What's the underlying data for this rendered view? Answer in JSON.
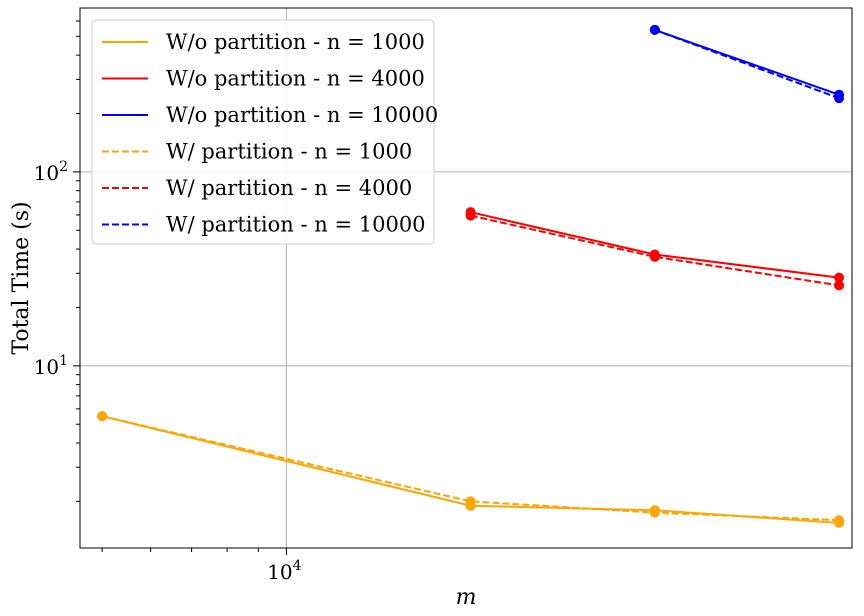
{
  "chart_data": {
    "type": "line",
    "title": "",
    "xlabel": "m",
    "ylabel": "Total Time (s)",
    "xscale": "log",
    "yscale": "log",
    "xlim": [
      4600,
      84000
    ],
    "ylim": [
      1.15,
      700
    ],
    "grid": true,
    "legend_position": "top-left",
    "x_ticks": [
      {
        "value": 10000,
        "base": "10",
        "exp": "4"
      }
    ],
    "y_ticks": [
      {
        "value": 10,
        "base": "10",
        "exp": "1"
      },
      {
        "value": 100,
        "base": "10",
        "exp": "2"
      }
    ],
    "series": [
      {
        "name": "W/o partition - n = 1000",
        "color": "#ffa500",
        "dash": false,
        "x": [
          5000,
          20000,
          40000,
          80000
        ],
        "y": [
          5.5,
          1.9,
          1.8,
          1.55
        ]
      },
      {
        "name": "W/o partition - n = 4000",
        "color": "#ff0000",
        "dash": false,
        "x": [
          20000,
          40000,
          80000
        ],
        "y": [
          62,
          37.5,
          28.5
        ]
      },
      {
        "name": "W/o partition - n = 10000",
        "color": "#0000ff",
        "dash": false,
        "x": [
          40000,
          80000
        ],
        "y": [
          540,
          250
        ]
      },
      {
        "name": "W/ partition - n = 1000",
        "color": "#ffa500",
        "dash": true,
        "x": [
          5000,
          20000,
          40000,
          80000
        ],
        "y": [
          5.5,
          2.0,
          1.75,
          1.6
        ]
      },
      {
        "name": "W/ partition - n = 4000",
        "color": "#ff0000",
        "dash": true,
        "x": [
          20000,
          40000,
          80000
        ],
        "y": [
          59.5,
          36.5,
          26
        ]
      },
      {
        "name": "W/ partition - n = 10000",
        "color": "#0000ff",
        "dash": true,
        "x": [
          40000,
          80000
        ],
        "y": [
          540,
          240
        ]
      }
    ]
  }
}
